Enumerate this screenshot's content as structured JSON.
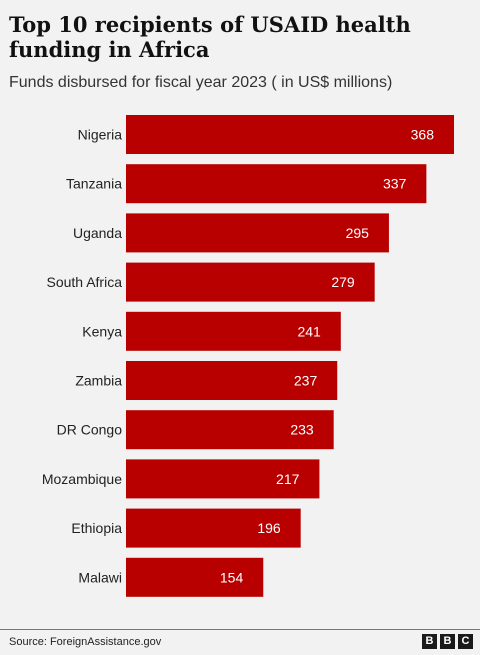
{
  "chart_data": {
    "type": "bar",
    "orientation": "horizontal",
    "title": "Top 10 recipients of USAID health funding in Africa",
    "subtitle": "Funds disbursed for fiscal year 2023 ( in US$ millions)",
    "categories": [
      "Nigeria",
      "Tanzania",
      "Uganda",
      "South Africa",
      "Kenya",
      "Zambia",
      "DR Congo",
      "Mozambique",
      "Ethiopia",
      "Malawi"
    ],
    "values": [
      368,
      337,
      295,
      279,
      241,
      237,
      233,
      217,
      196,
      154
    ],
    "xlim": [
      0,
      368
    ],
    "bar_color": "#b80000",
    "grid": false,
    "data_labels": true
  },
  "source": "Source: ForeignAssistance.gov",
  "logo": [
    "B",
    "B",
    "C"
  ]
}
